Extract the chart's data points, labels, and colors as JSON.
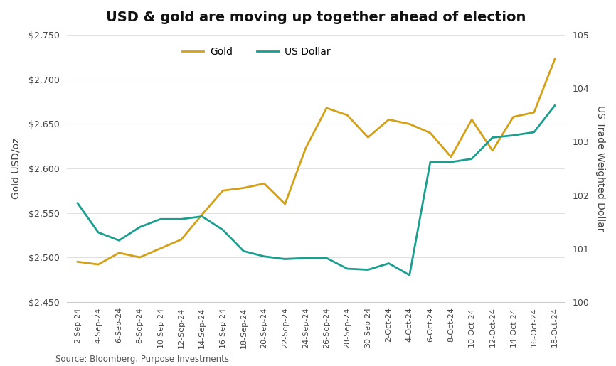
{
  "title": "USD & gold are moving up together ahead of election",
  "source": "Source: Bloomberg, Purpose Investments",
  "ylabel_left": "Gold USD/oz",
  "ylabel_right": "US Trade Weighted Dollar",
  "gold_color": "#D4A017",
  "usd_color": "#1A9E8F",
  "background_color": "#FFFFFF",
  "ylim_left": [
    2450,
    2750
  ],
  "ylim_right": [
    100,
    105
  ],
  "yticks_left": [
    2450,
    2500,
    2550,
    2600,
    2650,
    2700,
    2750
  ],
  "yticks_right": [
    100,
    101,
    102,
    103,
    104,
    105
  ],
  "x_labels": [
    "2-Sep-24",
    "4-Sep-24",
    "6-Sep-24",
    "8-Sep-24",
    "10-Sep-24",
    "12-Sep-24",
    "14-Sep-24",
    "16-Sep-24",
    "18-Sep-24",
    "20-Sep-24",
    "22-Sep-24",
    "24-Sep-24",
    "26-Sep-24",
    "28-Sep-24",
    "30-Sep-24",
    "2-Oct-24",
    "4-Oct-24",
    "6-Oct-24",
    "8-Oct-24",
    "10-Oct-24",
    "12-Oct-24",
    "14-Oct-24",
    "16-Oct-24",
    "18-Oct-24"
  ],
  "gold_values": [
    2495,
    2492,
    2505,
    2500,
    2510,
    2520,
    2548,
    2575,
    2578,
    2583,
    2560,
    2623,
    2668,
    2660,
    2635,
    2655,
    2650,
    2640,
    2613,
    2655,
    2620,
    2658,
    2663,
    2723
  ],
  "usd_values": [
    101.85,
    101.3,
    101.15,
    101.4,
    101.55,
    101.55,
    101.6,
    101.35,
    100.95,
    100.85,
    100.8,
    100.82,
    100.82,
    100.62,
    100.6,
    100.72,
    100.5,
    102.62,
    102.62,
    102.68,
    103.08,
    103.12,
    103.18,
    103.68
  ],
  "legend_gold": "Gold",
  "legend_usd": "US Dollar",
  "line_width": 2.0
}
